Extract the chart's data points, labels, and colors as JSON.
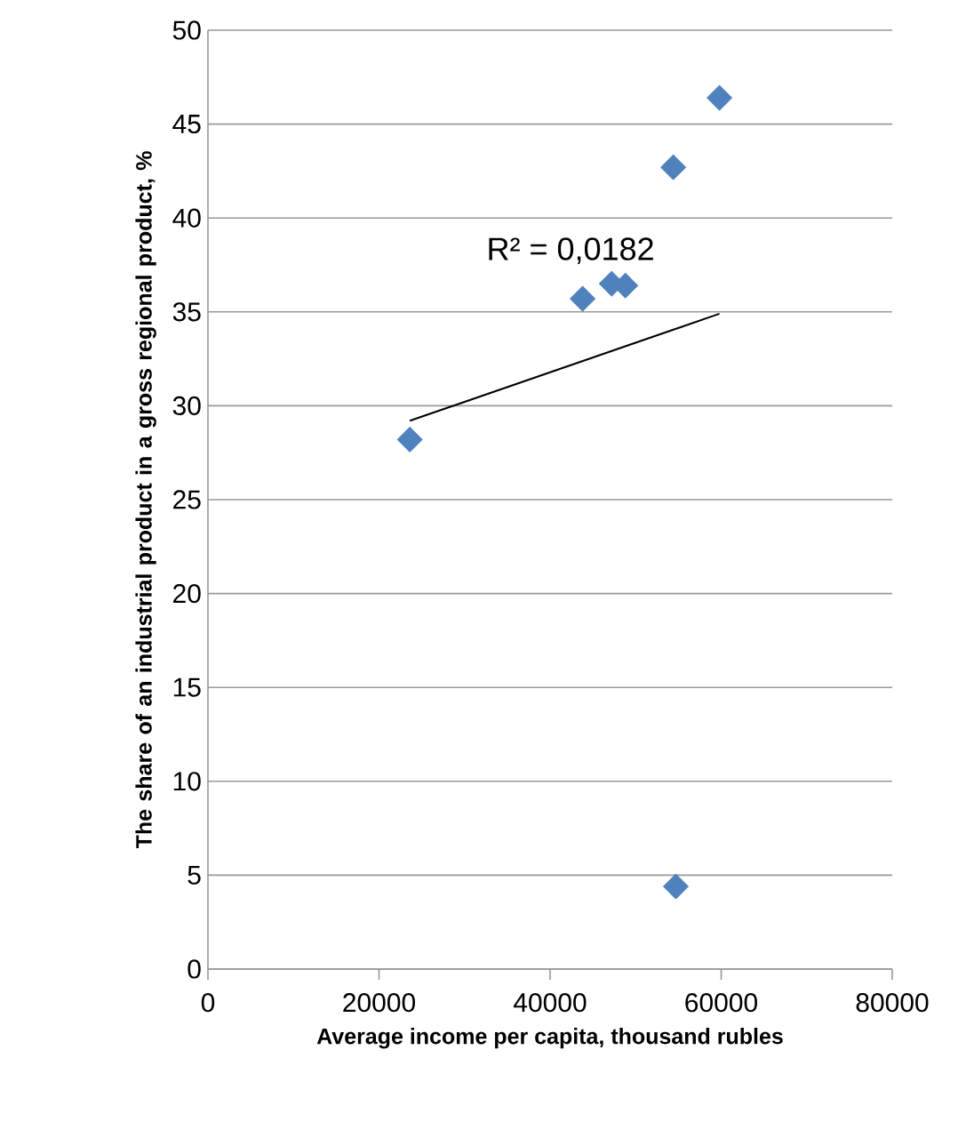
{
  "chart_data": {
    "type": "scatter",
    "xlabel": "Average income per capita, thousand rubles",
    "ylabel": "The share of an industrial product in a gross regional product, %",
    "xlim": [
      0,
      80000
    ],
    "ylim": [
      0,
      50
    ],
    "xticks": [
      0,
      20000,
      40000,
      60000,
      80000
    ],
    "yticks": [
      0,
      5,
      10,
      15,
      20,
      25,
      30,
      35,
      40,
      45,
      50
    ],
    "grid": "y",
    "marker": "diamond",
    "annotations": [
      "R² = 0,0182"
    ],
    "series": [
      {
        "color": "#4f81bd",
        "x": [
          23600,
          43800,
          47200,
          48800,
          54400,
          59800,
          54700
        ],
        "values": [
          28.2,
          35.7,
          36.5,
          36.4,
          42.7,
          46.4,
          4.4
        ]
      },
      {
        "type": "line",
        "color": "#000000",
        "marker": "none",
        "x": [
          23600,
          59800
        ],
        "values": [
          29.2,
          34.9
        ]
      }
    ]
  }
}
